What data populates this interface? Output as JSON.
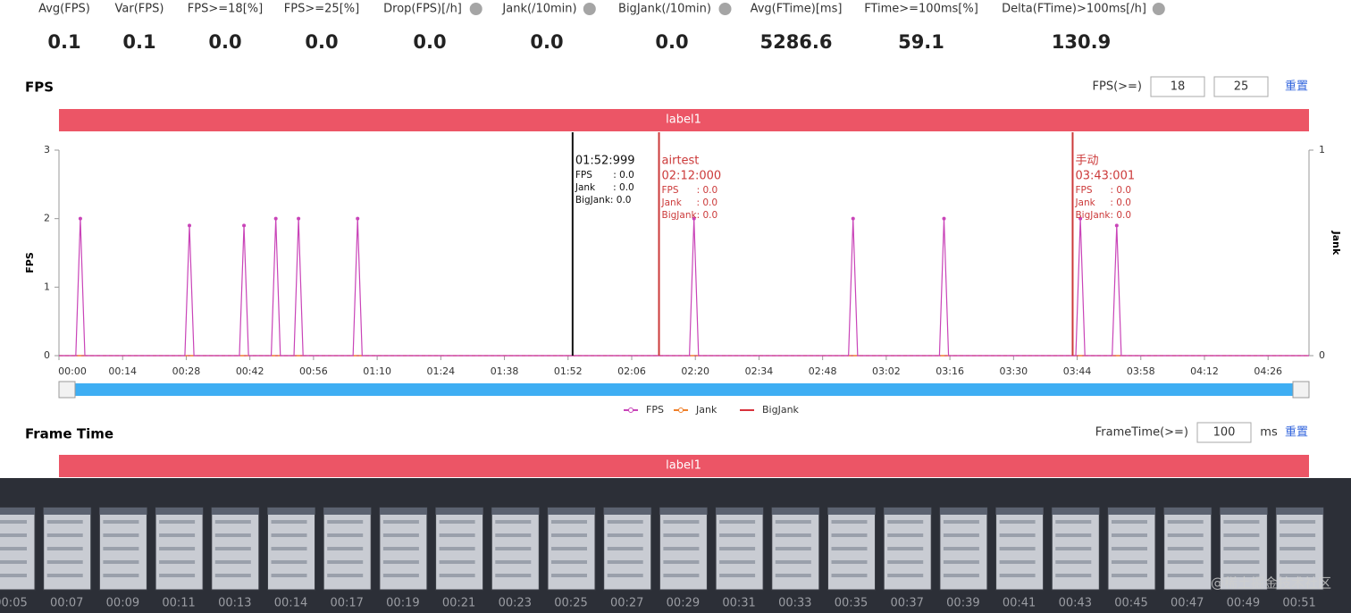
{
  "stats": [
    {
      "label": "Avg(FPS)",
      "value": "0.1"
    },
    {
      "label": "Var(FPS)",
      "value": "0.1"
    },
    {
      "label": "FPS>=18[%]",
      "value": "0.0"
    },
    {
      "label": "FPS>=25[%]",
      "value": "0.0"
    },
    {
      "label": "Drop(FPS)[/h]",
      "value": "0.0"
    },
    {
      "label": "Jank(/10min)",
      "value": "0.0"
    },
    {
      "label": "BigJank(/10min)",
      "value": "0.0"
    },
    {
      "label": "Avg(FTime)[ms]",
      "value": "5286.6"
    },
    {
      "label": "FTime>=100ms[%]",
      "value": "59.1"
    },
    {
      "label": "Delta(FTime)>100ms[/h]",
      "value": "130.9"
    }
  ],
  "fps_section": {
    "title": "FPS",
    "filter_label": "FPS(>=)",
    "input1": "18",
    "input2": "25",
    "reset": "重置",
    "band_label": "label1"
  },
  "chart_data": {
    "type": "line",
    "y_label": "FPS",
    "y2_label": "Jank",
    "x": [
      0,
      3.7,
      4.7,
      5.7,
      27.7,
      28.7,
      29.7,
      39.7,
      40.7,
      41.7,
      46.7,
      47.7,
      48.7,
      51.7,
      52.7,
      53.7,
      64.7,
      65.7,
      66.7,
      138.7,
      139.7,
      140.7,
      173.7,
      174.7,
      175.7,
      193.7,
      194.7,
      195.7,
      223.7,
      224.7,
      225.7,
      231.7,
      232.7,
      233.7,
      275
    ],
    "series": [
      {
        "name": "FPS",
        "color": "#c944b8",
        "values": [
          0,
          0,
          2,
          0,
          0,
          1.9,
          0,
          0,
          1.9,
          0,
          0,
          2,
          0,
          0,
          2,
          0,
          0,
          2,
          0,
          0,
          2,
          0,
          0,
          2,
          0,
          0,
          2,
          0,
          0,
          2,
          0,
          0,
          1.9,
          0,
          0
        ]
      },
      {
        "name": "Jank",
        "color": "#f0802a",
        "axis": "y2",
        "values": [
          0,
          0,
          0,
          0,
          0,
          0,
          0,
          0,
          0,
          0,
          0,
          0,
          0,
          0,
          0,
          0,
          0,
          0,
          0,
          0,
          0,
          0,
          0,
          0,
          0,
          0,
          0,
          0,
          0,
          0,
          0,
          0,
          0,
          0,
          0
        ]
      },
      {
        "name": "BigJank",
        "color": "#d8323c",
        "values": [
          0,
          0,
          0,
          0,
          0,
          0,
          0,
          0,
          0,
          0,
          0,
          0,
          0,
          0,
          0,
          0,
          0,
          0,
          0,
          0,
          0,
          0,
          0,
          0,
          0,
          0,
          0,
          0,
          0,
          0,
          0,
          0,
          0,
          0,
          0
        ]
      }
    ],
    "xlim": [
      0,
      275
    ],
    "xticks": [
      {
        "value": 0,
        "label": "00:00"
      },
      {
        "value": 14,
        "label": "00:14"
      },
      {
        "value": 28,
        "label": "00:28"
      },
      {
        "value": 42,
        "label": "00:42"
      },
      {
        "value": 56,
        "label": "00:56"
      },
      {
        "value": 70,
        "label": "01:10"
      },
      {
        "value": 84,
        "label": "01:24"
      },
      {
        "value": 98,
        "label": "01:38"
      },
      {
        "value": 112,
        "label": "01:52"
      },
      {
        "value": 126,
        "label": "02:06"
      },
      {
        "value": 140,
        "label": "02:20"
      },
      {
        "value": 154,
        "label": "02:34"
      },
      {
        "value": 168,
        "label": "02:48"
      },
      {
        "value": 182,
        "label": "03:02"
      },
      {
        "value": 196,
        "label": "03:16"
      },
      {
        "value": 210,
        "label": "03:30"
      },
      {
        "value": 224,
        "label": "03:44"
      },
      {
        "value": 238,
        "label": "03:58"
      },
      {
        "value": 252,
        "label": "04:12"
      },
      {
        "value": 266,
        "label": "04:26"
      }
    ],
    "ylim": [
      0,
      3
    ],
    "yticks": [
      0,
      1,
      2,
      3
    ],
    "y2lim": [
      0,
      1
    ],
    "y2ticks": [
      0,
      1
    ],
    "markers": [
      {
        "x": 112.999,
        "color": "#111111",
        "heading": [
          "01:52:999"
        ],
        "lines": [
          "FPS       : 0.0",
          "Jank      : 0.0",
          "BigJank: 0.0"
        ]
      },
      {
        "x": 132,
        "color": "#cc3a3a",
        "heading": [
          "airtest",
          "02:12:000"
        ],
        "lines": [
          "FPS      : 0.0",
          "Jank     : 0.0",
          "BigJank: 0.0"
        ]
      },
      {
        "x": 223.001,
        "color": "#cc3a3a",
        "heading": [
          "手动",
          "03:43:001"
        ],
        "lines": [
          "FPS      : 0.0",
          "Jank     : 0.0",
          "BigJank: 0.0"
        ]
      }
    ]
  },
  "frame_section": {
    "title": "Frame Time",
    "filter_label": "FrameTime(>=)",
    "input": "100",
    "unit": "ms",
    "reset": "重置",
    "band_label": "label1"
  },
  "thumbnails": [
    "00:05",
    "00:07",
    "00:09",
    "00:11",
    "00:13",
    "00:14",
    "00:17",
    "00:19",
    "00:21",
    "00:23",
    "00:25",
    "00:27",
    "00:29",
    "00:31",
    "00:33",
    "00:35",
    "00:37",
    "00:39",
    "00:41",
    "00:43",
    "00:45",
    "00:47",
    "00:49",
    "00:51"
  ],
  "watermark": "@稀土掘金技术社区"
}
